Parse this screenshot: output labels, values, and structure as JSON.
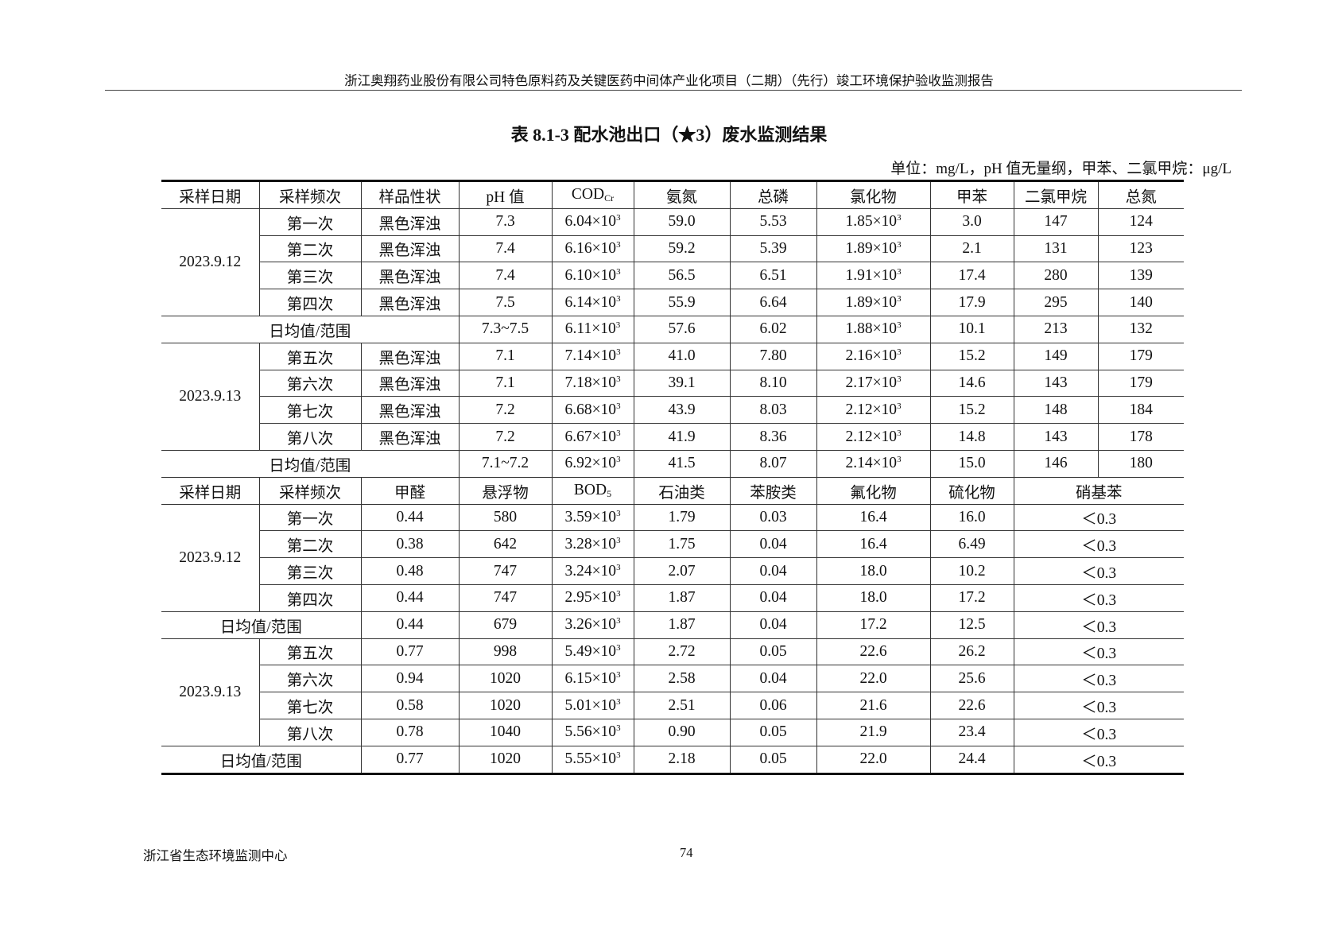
{
  "header": "浙江奥翔药业股份有限公司特色原料药及关键医药中间体产业化项目（二期）（先行）竣工环境保护验收监测报告",
  "title": "表 8.1-3  配水池出口（★3）废水监测结果",
  "unit": "单位：mg/L，pH 值无量纲，甲苯、二氯甲烷：μg/L",
  "avg_label": "日均值/范围",
  "section1": {
    "headers": [
      {
        "main": "采样日期"
      },
      {
        "main": "采样频次"
      },
      {
        "main": "样品性状"
      },
      {
        "main": "pH 值"
      },
      {
        "main": "COD",
        "sub": "Cr"
      },
      {
        "main": "氨氮"
      },
      {
        "main": "总磷"
      },
      {
        "main": "氯化物"
      },
      {
        "main": "甲苯"
      },
      {
        "main": "二氯甲烷"
      },
      {
        "main": "总氮"
      }
    ],
    "groups": [
      {
        "date": "2023.9.12",
        "rows": [
          [
            "第一次",
            "黑色浑浊",
            "7.3",
            "6.04×10³",
            "59.0",
            "5.53",
            "1.85×10³",
            "3.0",
            "147",
            "124"
          ],
          [
            "第二次",
            "黑色浑浊",
            "7.4",
            "6.16×10³",
            "59.2",
            "5.39",
            "1.89×10³",
            "2.1",
            "131",
            "123"
          ],
          [
            "第三次",
            "黑色浑浊",
            "7.4",
            "6.10×10³",
            "56.5",
            "6.51",
            "1.91×10³",
            "17.4",
            "280",
            "139"
          ],
          [
            "第四次",
            "黑色浑浊",
            "7.5",
            "6.14×10³",
            "55.9",
            "6.64",
            "1.89×10³",
            "17.9",
            "295",
            "140"
          ]
        ],
        "avg": [
          "7.3~7.5",
          "6.11×10³",
          "57.6",
          "6.02",
          "1.88×10³",
          "10.1",
          "213",
          "132"
        ]
      },
      {
        "date": "2023.9.13",
        "rows": [
          [
            "第五次",
            "黑色浑浊",
            "7.1",
            "7.14×10³",
            "41.0",
            "7.80",
            "2.16×10³",
            "15.2",
            "149",
            "179"
          ],
          [
            "第六次",
            "黑色浑浊",
            "7.1",
            "7.18×10³",
            "39.1",
            "8.10",
            "2.17×10³",
            "14.6",
            "143",
            "179"
          ],
          [
            "第七次",
            "黑色浑浊",
            "7.2",
            "6.68×10³",
            "43.9",
            "8.03",
            "2.12×10³",
            "15.2",
            "148",
            "184"
          ],
          [
            "第八次",
            "黑色浑浊",
            "7.2",
            "6.67×10³",
            "41.9",
            "8.36",
            "2.12×10³",
            "14.8",
            "143",
            "178"
          ]
        ],
        "avg": [
          "7.1~7.2",
          "6.92×10³",
          "41.5",
          "8.07",
          "2.14×10³",
          "15.0",
          "146",
          "180"
        ]
      }
    ]
  },
  "section2": {
    "headers": [
      {
        "main": "采样日期"
      },
      {
        "main": "采样频次"
      },
      {
        "main": "甲醛"
      },
      {
        "main": "悬浮物"
      },
      {
        "main": "BOD",
        "sub": "5"
      },
      {
        "main": "石油类"
      },
      {
        "main": "苯胺类"
      },
      {
        "main": "氟化物"
      },
      {
        "main": "硫化物"
      },
      {
        "main": "硝基苯"
      }
    ],
    "groups": [
      {
        "date": "2023.9.12",
        "rows": [
          [
            "第一次",
            "0.44",
            "580",
            "3.59×10³",
            "1.79",
            "0.03",
            "16.4",
            "16.0",
            "＜0.3"
          ],
          [
            "第二次",
            "0.38",
            "642",
            "3.28×10³",
            "1.75",
            "0.04",
            "16.4",
            "6.49",
            "＜0.3"
          ],
          [
            "第三次",
            "0.48",
            "747",
            "3.24×10³",
            "2.07",
            "0.04",
            "18.0",
            "10.2",
            "＜0.3"
          ],
          [
            "第四次",
            "0.44",
            "747",
            "2.95×10³",
            "1.87",
            "0.04",
            "18.0",
            "17.2",
            "＜0.3"
          ]
        ],
        "avg": [
          "0.44",
          "679",
          "3.26×10³",
          "1.87",
          "0.04",
          "17.2",
          "12.5",
          "＜0.3"
        ]
      },
      {
        "date": "2023.9.13",
        "rows": [
          [
            "第五次",
            "0.77",
            "998",
            "5.49×10³",
            "2.72",
            "0.05",
            "22.6",
            "26.2",
            "＜0.3"
          ],
          [
            "第六次",
            "0.94",
            "1020",
            "6.15×10³",
            "2.58",
            "0.04",
            "22.0",
            "25.6",
            "＜0.3"
          ],
          [
            "第七次",
            "0.58",
            "1020",
            "5.01×10³",
            "2.51",
            "0.06",
            "21.6",
            "22.6",
            "＜0.3"
          ],
          [
            "第八次",
            "0.78",
            "1040",
            "5.56×10³",
            "0.90",
            "0.05",
            "21.9",
            "23.4",
            "＜0.3"
          ]
        ],
        "avg": [
          "0.77",
          "1020",
          "5.55×10³",
          "2.18",
          "0.05",
          "22.0",
          "24.4",
          "＜0.3"
        ]
      }
    ]
  },
  "footer": {
    "org": "浙江省生态环境监测中心",
    "page": "74"
  }
}
